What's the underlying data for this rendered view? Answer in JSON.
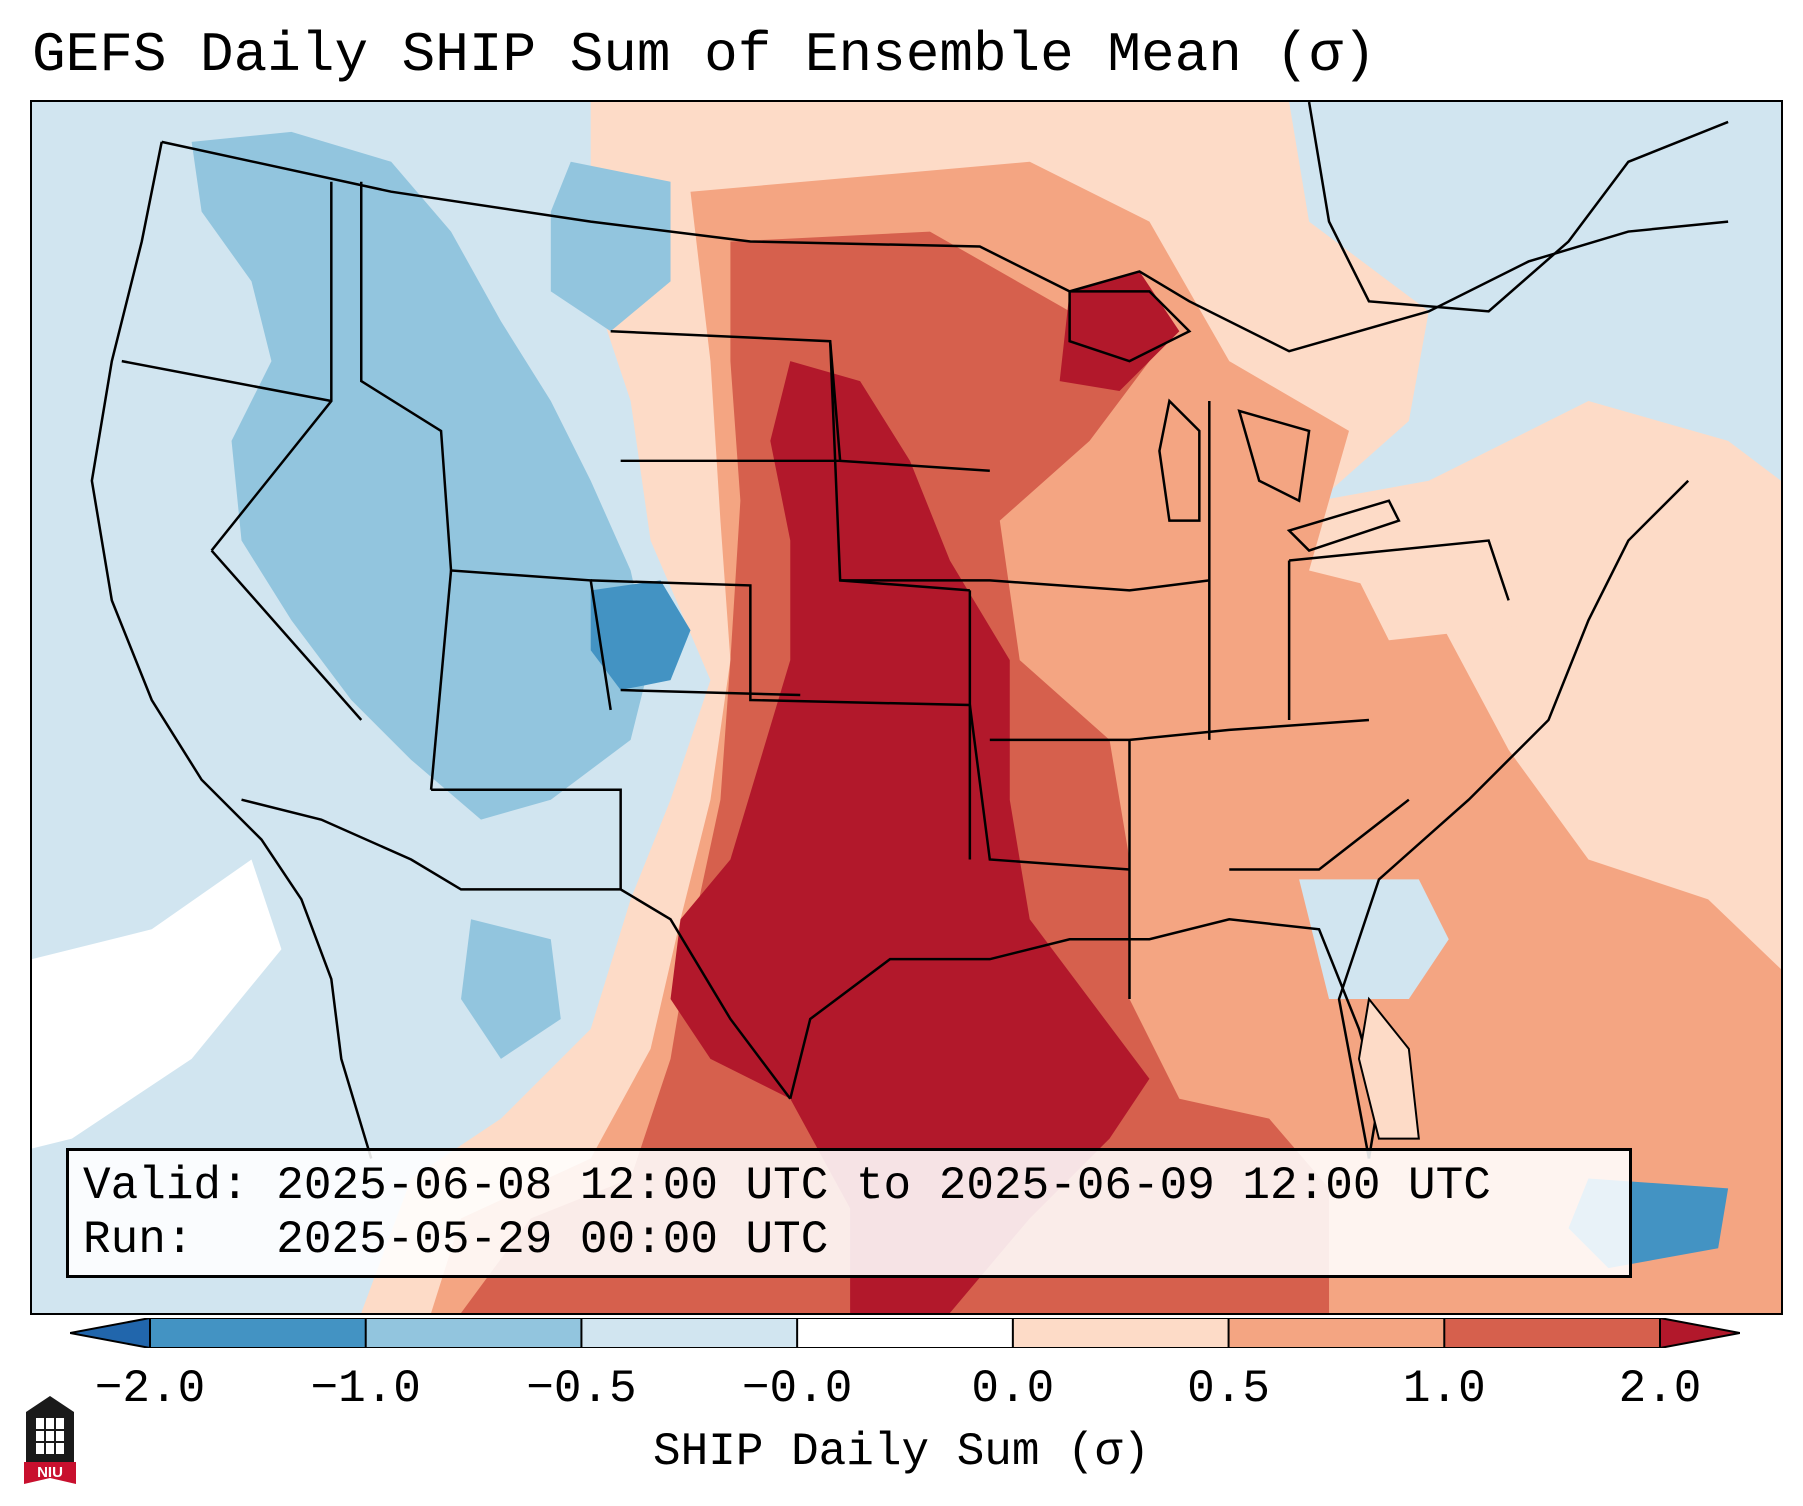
{
  "title": "GEFS Daily SHIP Sum of Ensemble Mean (σ)",
  "info": {
    "valid_label": "Valid:",
    "valid_value": "2025-06-08 12:00 UTC to 2025-06-09 12:00 UTC",
    "run_label": "Run:",
    "run_value": "2025-05-29 00:00 UTC"
  },
  "colorbar": {
    "label": "SHIP Daily Sum (σ)",
    "ticks": [
      "−2.0",
      "−1.0",
      "−0.5",
      "−0.0",
      "0.0",
      "0.5",
      "1.0",
      "2.0"
    ],
    "colors": [
      "#2166ac",
      "#4393c3",
      "#92c5de",
      "#d1e5f0",
      "#ffffff",
      "#fddbc7",
      "#f4a582",
      "#d6604d",
      "#b2182b"
    ]
  },
  "logo": {
    "text": "NIU"
  }
}
